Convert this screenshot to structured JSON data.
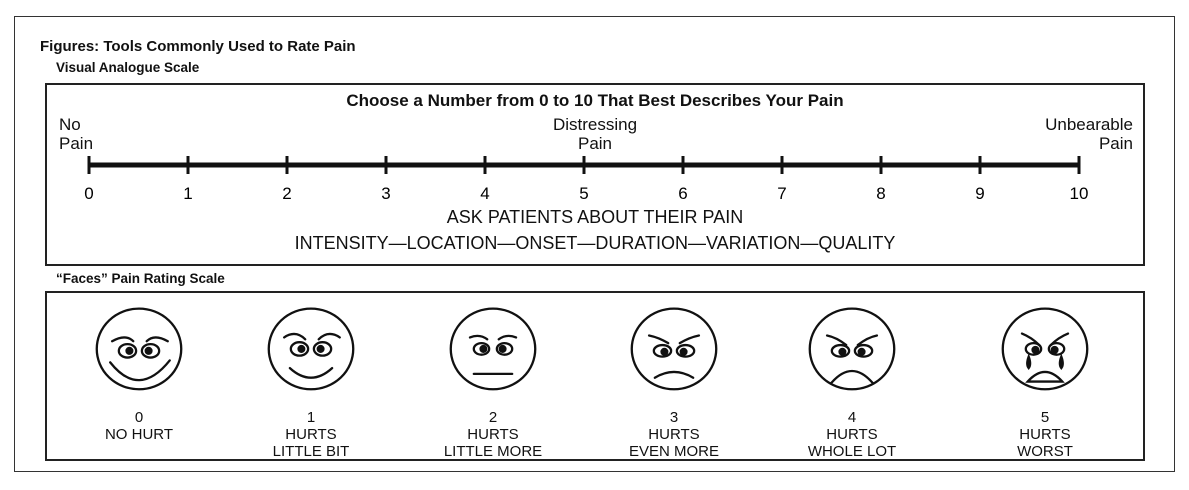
{
  "figure_title": "Figures: Tools Commonly Used to Rate Pain",
  "vas": {
    "section_label": "Visual Analogue Scale",
    "instruction": "Choose a Number from 0 to 10 That Best Describes Your Pain",
    "anchors": {
      "left": [
        "No",
        "Pain"
      ],
      "middle": [
        "Distressing",
        "Pain"
      ],
      "right": [
        "Unbearable",
        "Pain"
      ]
    },
    "ticks": [
      "0",
      "1",
      "2",
      "3",
      "4",
      "5",
      "6",
      "7",
      "8",
      "9",
      "10"
    ],
    "ask_line1": "ASK PATIENTS ABOUT THEIR PAIN",
    "ask_line2": "INTENSITY—LOCATION—ONSET—DURATION—VARIATION—QUALITY"
  },
  "faces": {
    "section_label": "“Faces” Pain Rating Scale",
    "items": [
      {
        "number": "0",
        "line1": "NO HURT",
        "line2": ""
      },
      {
        "number": "1",
        "line1": "HURTS",
        "line2": "LITTLE BIT"
      },
      {
        "number": "2",
        "line1": "HURTS",
        "line2": "LITTLE MORE"
      },
      {
        "number": "3",
        "line1": "HURTS",
        "line2": "EVEN MORE"
      },
      {
        "number": "4",
        "line1": "HURTS",
        "line2": "WHOLE LOT"
      },
      {
        "number": "5",
        "line1": "HURTS",
        "line2": "WORST"
      }
    ]
  }
}
